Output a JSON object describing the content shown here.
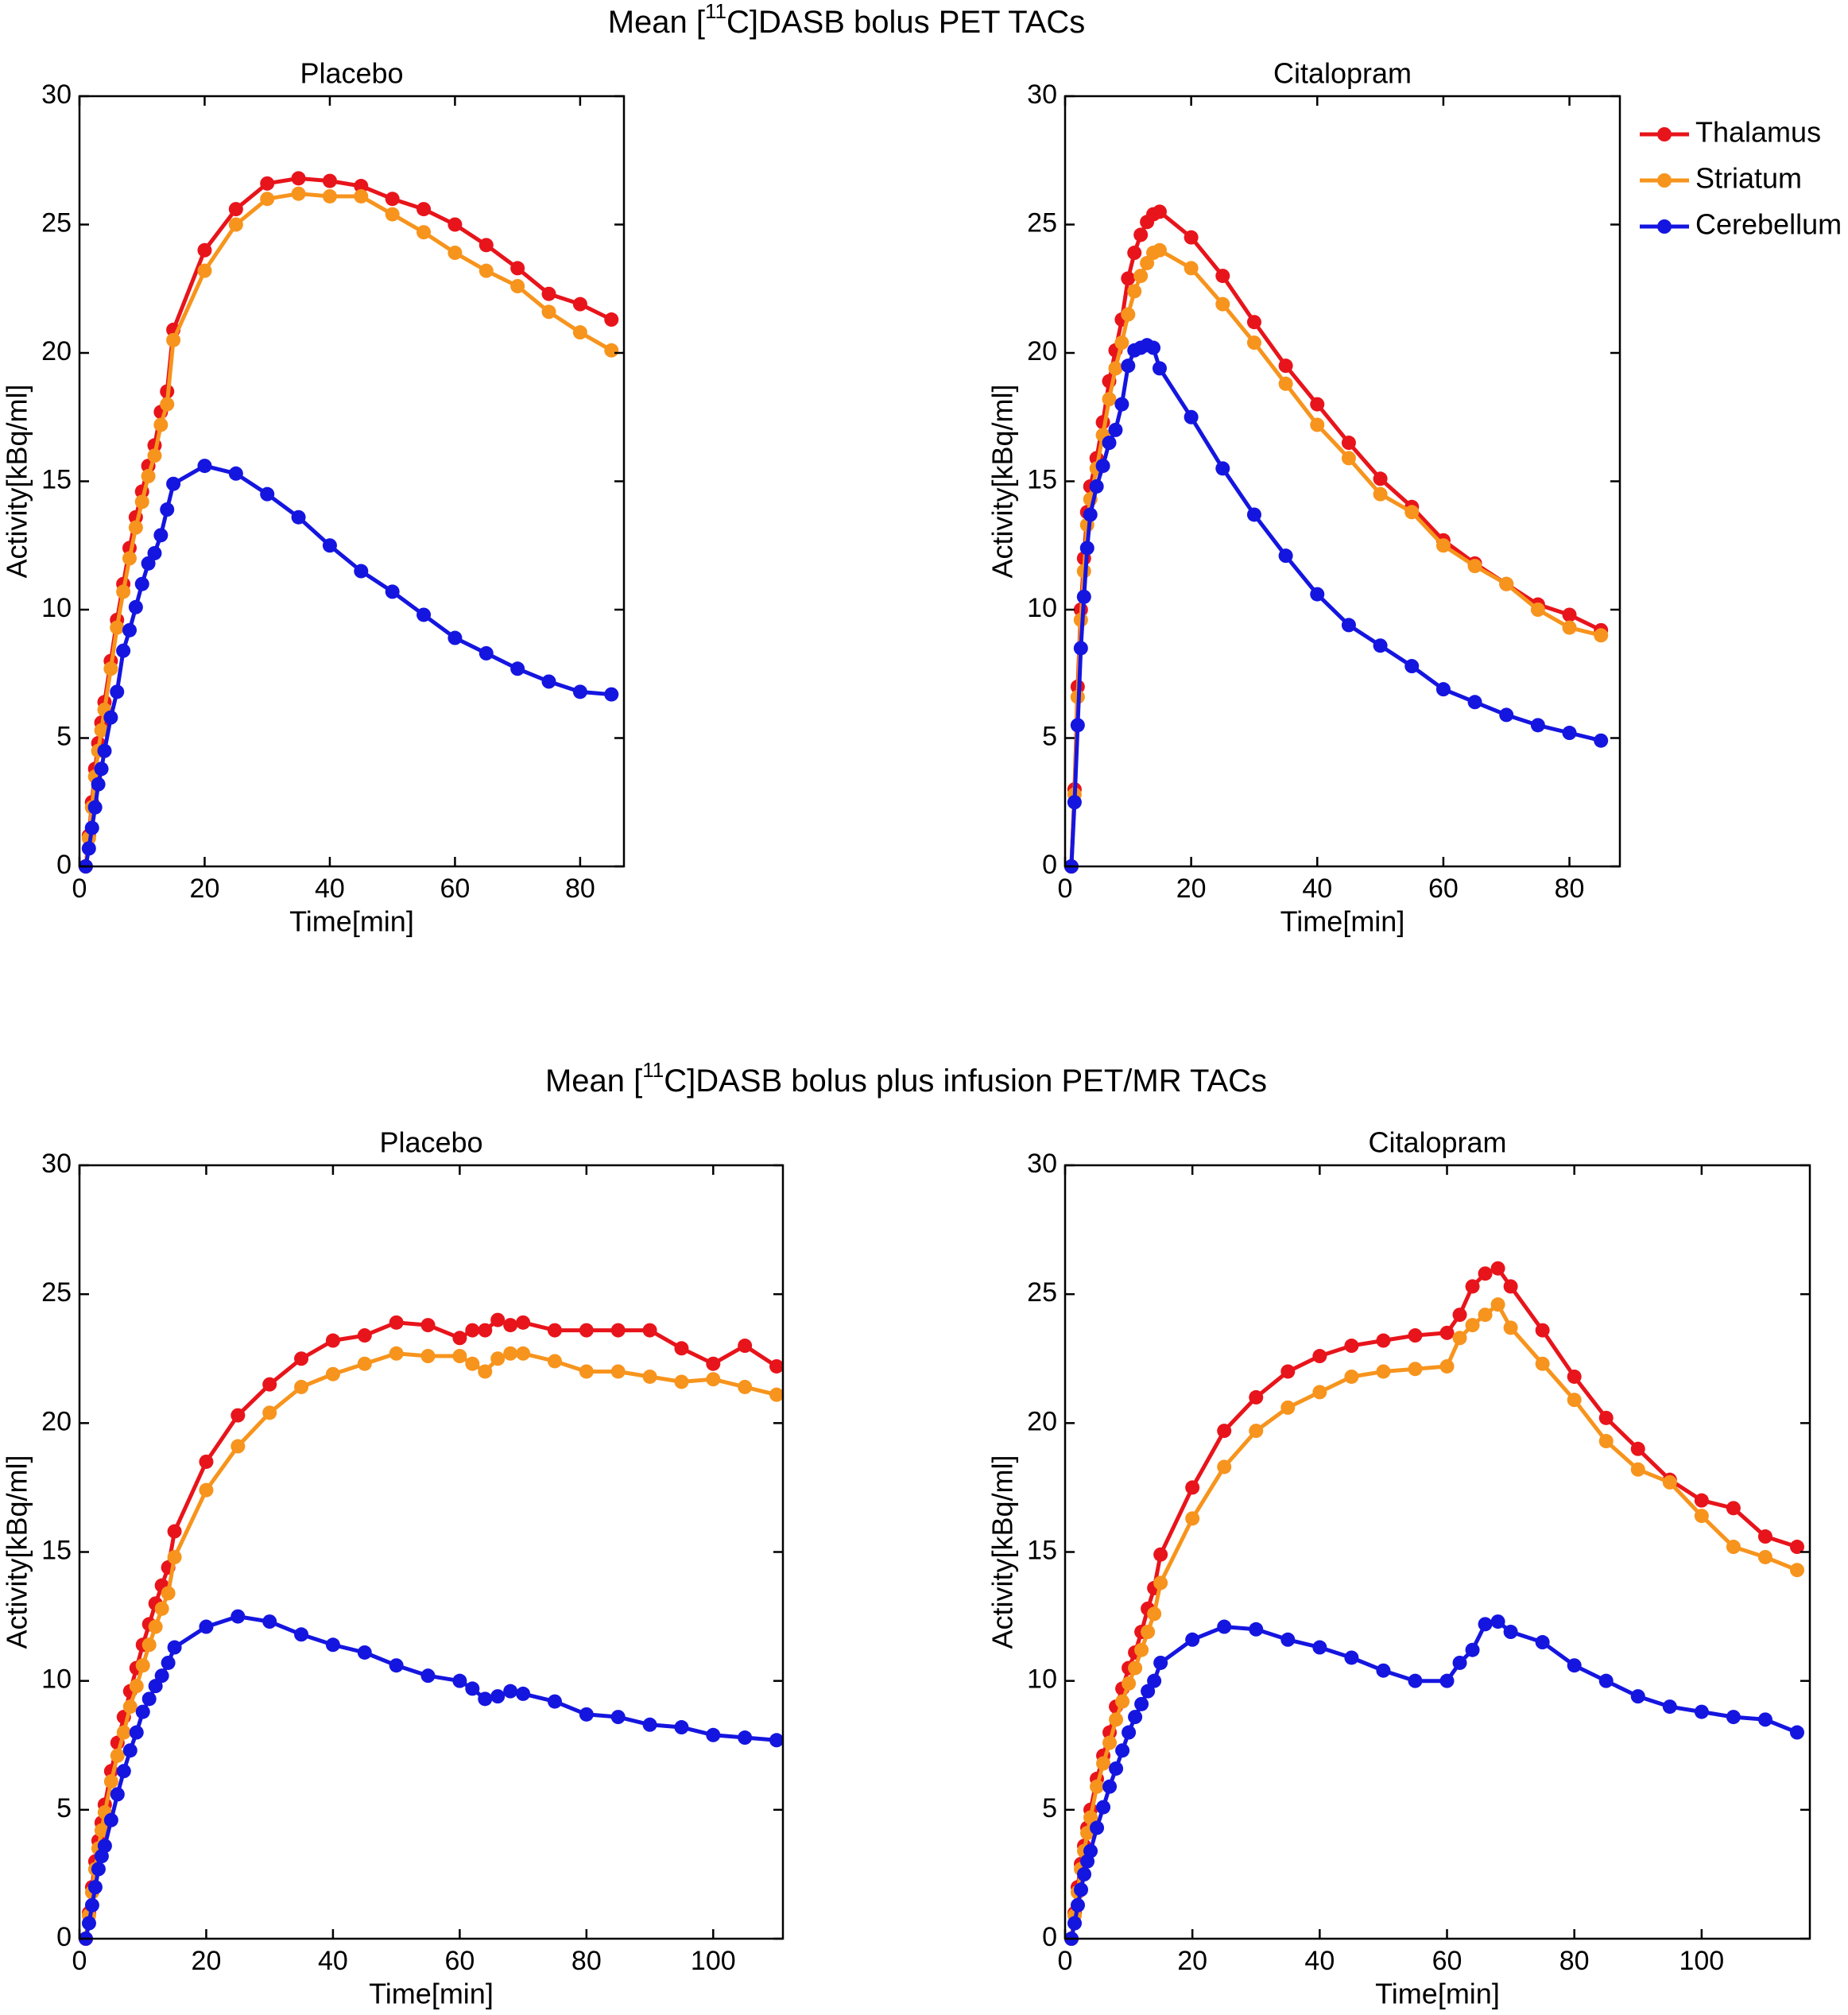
{
  "suptitles": [
    {
      "prefix": "Mean [",
      "sup": "11",
      "suffix": "C]DASB bolus PET TACs"
    },
    {
      "prefix": "Mean [",
      "sup": "11",
      "suffix": "C]DASB bolus plus infusion PET/MR TACs"
    }
  ],
  "chart_data": [
    {
      "type": "line",
      "title": "Placebo",
      "xlabel": "Time[min]",
      "ylabel": "Activity[kBq/ml]",
      "xlim": [
        0,
        87
      ],
      "xticks": [
        0,
        20,
        40,
        60,
        80
      ],
      "ylim": [
        0,
        30
      ],
      "yticks": [
        0,
        5,
        10,
        15,
        20,
        25,
        30
      ],
      "x": [
        1,
        1.5,
        2,
        2.5,
        3,
        3.5,
        4,
        5,
        6,
        7,
        8,
        9,
        10,
        11,
        12,
        13,
        14,
        15,
        20,
        25,
        30,
        35,
        40,
        45,
        50,
        55,
        60,
        65,
        70,
        75,
        80,
        85
      ],
      "series": [
        {
          "color": "#e8141b",
          "values": [
            0,
            1.2,
            2.5,
            3.8,
            4.8,
            5.6,
            6.4,
            8,
            9.6,
            11,
            12.4,
            13.6,
            14.6,
            15.6,
            16.4,
            17.7,
            18.5,
            20.9,
            24,
            25.6,
            26.6,
            26.8,
            26.7,
            26.5,
            26,
            25.6,
            25,
            24.2,
            23.3,
            22.3,
            21.9,
            21.3
          ]
        },
        {
          "color": "#f7941d",
          "values": [
            0,
            1.1,
            2.3,
            3.5,
            4.5,
            5.3,
            6.1,
            7.7,
            9.3,
            10.7,
            12,
            13.2,
            14.2,
            15.2,
            16,
            17.2,
            18,
            20.5,
            23.2,
            25,
            26,
            26.2,
            26.1,
            26.1,
            25.4,
            24.7,
            23.9,
            23.2,
            22.6,
            21.6,
            20.8,
            20.1
          ]
        },
        {
          "color": "#1515e0",
          "values": [
            0,
            0.7,
            1.5,
            2.3,
            3.2,
            3.8,
            4.5,
            5.8,
            6.8,
            8.4,
            9.2,
            10.1,
            11,
            11.8,
            12.2,
            12.9,
            13.9,
            14.9,
            15.6,
            15.3,
            14.5,
            13.6,
            12.5,
            11.5,
            10.7,
            9.8,
            8.9,
            8.3,
            7.7,
            7.2,
            6.8,
            6.7
          ]
        }
      ]
    },
    {
      "type": "line",
      "title": "Citalopram",
      "xlabel": "Time[min]",
      "ylabel": "Activity[kBq/ml]",
      "legend": "outside right",
      "xlim": [
        0,
        88
      ],
      "xticks": [
        0,
        20,
        40,
        60,
        80
      ],
      "ylim": [
        0,
        30
      ],
      "yticks": [
        0,
        5,
        10,
        15,
        20,
        25,
        30
      ],
      "x": [
        1,
        1.5,
        2,
        2.5,
        3,
        3.5,
        4,
        5,
        6,
        7,
        8,
        9,
        10,
        11,
        12,
        13,
        14,
        15,
        20,
        25,
        30,
        35,
        40,
        45,
        50,
        55,
        60,
        65,
        70,
        75,
        80,
        85
      ],
      "series": [
        {
          "name": "Thalamus",
          "color": "#e8141b",
          "values": [
            0,
            3,
            7,
            10,
            12,
            13.8,
            14.8,
            15.9,
            17.3,
            18.9,
            20.1,
            21.3,
            22.9,
            23.9,
            24.6,
            25.1,
            25.4,
            25.5,
            24.5,
            23,
            21.2,
            19.5,
            18,
            16.5,
            15.1,
            14,
            12.7,
            11.8,
            11,
            10.2,
            9.8,
            9.2
          ]
        },
        {
          "name": "Striatum",
          "color": "#f7941d",
          "values": [
            0,
            2.8,
            6.6,
            9.6,
            11.5,
            13.3,
            14.3,
            15.5,
            16.8,
            18.2,
            19.4,
            20.4,
            21.5,
            22.4,
            23,
            23.5,
            23.9,
            24,
            23.3,
            21.9,
            20.4,
            18.8,
            17.2,
            15.9,
            14.5,
            13.8,
            12.5,
            11.7,
            11,
            10,
            9.3,
            9
          ]
        },
        {
          "name": "Cerebellum",
          "color": "#1515e0",
          "values": [
            0,
            2.5,
            5.5,
            8.5,
            10.5,
            12.4,
            13.7,
            14.8,
            15.6,
            16.5,
            17,
            18,
            19.5,
            20.1,
            20.2,
            20.3,
            20.2,
            19.4,
            17.5,
            15.5,
            13.7,
            12.1,
            10.6,
            9.4,
            8.6,
            7.8,
            6.9,
            6.4,
            5.9,
            5.5,
            5.2,
            4.9
          ]
        }
      ]
    },
    {
      "type": "line",
      "title": "Placebo",
      "xlabel": "Time[min]",
      "ylabel": "Activity[kBq/ml]",
      "xlim": [
        0,
        111
      ],
      "xticks": [
        0,
        20,
        40,
        60,
        80,
        100
      ],
      "ylim": [
        0,
        30
      ],
      "yticks": [
        0,
        5,
        10,
        15,
        20,
        25,
        30
      ],
      "x": [
        1,
        1.5,
        2,
        2.5,
        3,
        3.5,
        4,
        5,
        6,
        7,
        8,
        9,
        10,
        11,
        12,
        13,
        14,
        15,
        20,
        25,
        30,
        35,
        40,
        45,
        50,
        55,
        60,
        62,
        64,
        66,
        68,
        70,
        75,
        80,
        85,
        90,
        95,
        100,
        105,
        110
      ],
      "series": [
        {
          "color": "#e8141b",
          "values": [
            0,
            1.0,
            2.0,
            3.0,
            3.8,
            4.5,
            5.2,
            6.5,
            7.6,
            8.6,
            9.6,
            10.5,
            11.4,
            12.2,
            13.0,
            13.7,
            14.4,
            15.8,
            18.5,
            20.3,
            21.5,
            22.5,
            23.2,
            23.4,
            23.9,
            23.8,
            23.3,
            23.6,
            23.6,
            24.0,
            23.8,
            23.9,
            23.6,
            23.6,
            23.6,
            23.6,
            22.9,
            22.3,
            23.0,
            22.2
          ]
        },
        {
          "color": "#f7941d",
          "values": [
            0,
            0.9,
            1.8,
            2.7,
            3.5,
            4.2,
            4.9,
            6.1,
            7.1,
            8.0,
            9.0,
            9.8,
            10.6,
            11.4,
            12.1,
            12.8,
            13.4,
            14.8,
            17.4,
            19.1,
            20.4,
            21.4,
            21.9,
            22.3,
            22.7,
            22.6,
            22.6,
            22.3,
            22.0,
            22.5,
            22.7,
            22.7,
            22.4,
            22.0,
            22.0,
            21.8,
            21.6,
            21.7,
            21.4,
            21.1
          ]
        },
        {
          "color": "#1515e0",
          "values": [
            0,
            0.6,
            1.3,
            2.0,
            2.7,
            3.2,
            3.6,
            4.6,
            5.6,
            6.5,
            7.3,
            8.0,
            8.8,
            9.3,
            9.8,
            10.2,
            10.7,
            11.3,
            12.1,
            12.5,
            12.3,
            11.8,
            11.4,
            11.1,
            10.6,
            10.2,
            10.0,
            9.7,
            9.3,
            9.4,
            9.6,
            9.5,
            9.2,
            8.7,
            8.6,
            8.3,
            8.2,
            7.9,
            7.8,
            7.7
          ]
        }
      ]
    },
    {
      "type": "line",
      "title": "Citalopram",
      "xlabel": "Time[min]",
      "ylabel": "Activity[kBq/ml]",
      "xlim": [
        0,
        117
      ],
      "xticks": [
        0,
        20,
        40,
        60,
        80,
        100
      ],
      "ylim": [
        0,
        30
      ],
      "yticks": [
        0,
        5,
        10,
        15,
        20,
        25,
        30
      ],
      "x": [
        1,
        1.5,
        2,
        2.5,
        3,
        3.5,
        4,
        5,
        6,
        7,
        8,
        9,
        10,
        11,
        12,
        13,
        14,
        15,
        20,
        25,
        30,
        35,
        40,
        45,
        50,
        55,
        60,
        62,
        64,
        66,
        68,
        70,
        75,
        80,
        85,
        90,
        95,
        100,
        105,
        110,
        115
      ],
      "series": [
        {
          "color": "#e8141b",
          "values": [
            0,
            1.0,
            2.0,
            2.9,
            3.6,
            4.3,
            5.0,
            6.2,
            7.1,
            8.0,
            9.0,
            9.7,
            10.5,
            11.1,
            11.9,
            12.8,
            13.6,
            14.9,
            17.5,
            19.7,
            21,
            22,
            22.6,
            23,
            23.2,
            23.4,
            23.5,
            24.2,
            25.3,
            25.8,
            26.0,
            25.3,
            23.6,
            21.8,
            20.2,
            19.0,
            17.8,
            17.0,
            16.7,
            15.6,
            15.2
          ]
        },
        {
          "color": "#f7941d",
          "values": [
            0,
            0.9,
            1.8,
            2.7,
            3.4,
            4.1,
            4.7,
            5.9,
            6.8,
            7.6,
            8.5,
            9.2,
            9.9,
            10.5,
            11.2,
            11.9,
            12.6,
            13.8,
            16.3,
            18.3,
            19.7,
            20.6,
            21.2,
            21.8,
            22,
            22.1,
            22.2,
            23.3,
            23.8,
            24.2,
            24.6,
            23.7,
            22.3,
            20.9,
            19.3,
            18.2,
            17.7,
            16.4,
            15.2,
            14.8,
            14.3
          ]
        },
        {
          "color": "#1515e0",
          "values": [
            0,
            0.6,
            1.3,
            1.9,
            2.5,
            3.0,
            3.4,
            4.3,
            5.1,
            5.9,
            6.6,
            7.3,
            8.0,
            8.6,
            9.1,
            9.6,
            10.0,
            10.7,
            11.6,
            12.1,
            12.0,
            11.6,
            11.3,
            10.9,
            10.4,
            10.0,
            10.0,
            10.7,
            11.2,
            12.2,
            12.3,
            11.9,
            11.5,
            10.6,
            10.0,
            9.4,
            9.0,
            8.8,
            8.6,
            8.5,
            8.0
          ]
        }
      ]
    }
  ]
}
